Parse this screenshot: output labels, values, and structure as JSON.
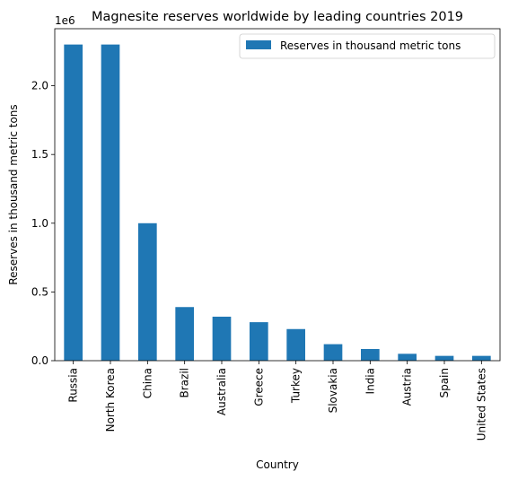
{
  "chart_data": {
    "type": "bar",
    "title": "Magnesite reserves worldwide by leading countries 2019",
    "xlabel": "Country",
    "ylabel": "Reserves in thousand metric tons",
    "y_offset_label": "1e6",
    "ylim": [
      0,
      2415000
    ],
    "y_ticks": [
      0,
      500000,
      1000000,
      1500000,
      2000000
    ],
    "y_tick_labels": [
      "0.0",
      "0.5",
      "1.0",
      "1.5",
      "2.0"
    ],
    "legend_position": "top-right",
    "grid": false,
    "bar_color": "#1f77b4",
    "categories": [
      "Russia",
      "North Korea",
      "China",
      "Brazil",
      "Australia",
      "Greece",
      "Turkey",
      "Slovakia",
      "India",
      "Austria",
      "Spain",
      "United States"
    ],
    "series": [
      {
        "name": "Reserves in thousand metric tons",
        "values": [
          2300000,
          2300000,
          1000000,
          390000,
          320000,
          280000,
          230000,
          120000,
          85000,
          50000,
          35000,
          35000
        ]
      }
    ]
  }
}
